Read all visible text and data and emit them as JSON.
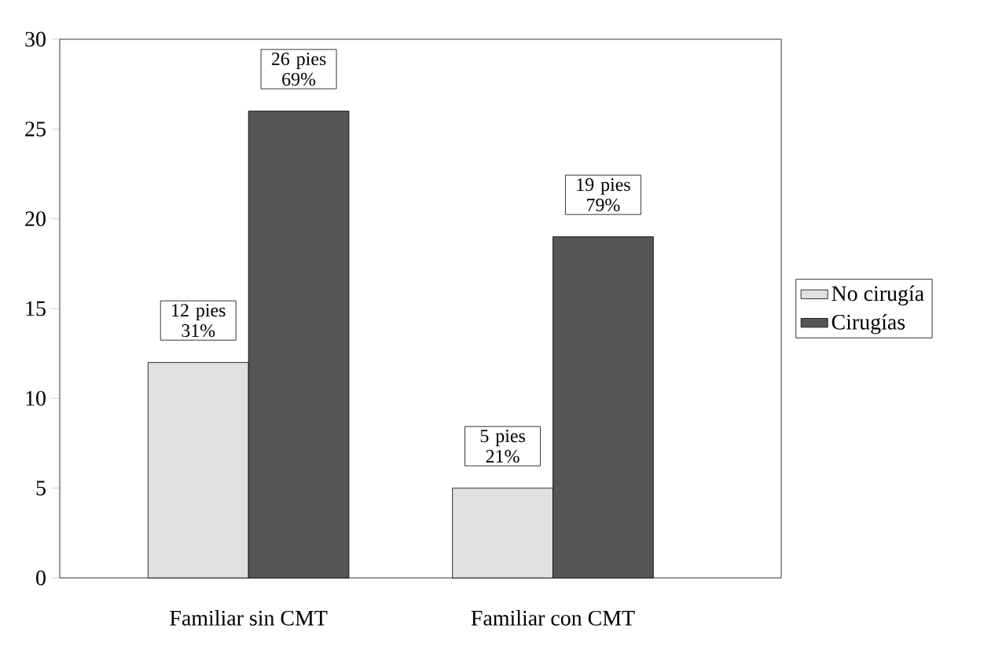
{
  "chart_data": {
    "type": "bar",
    "categories": [
      "Familiar sin CMT",
      "Familiar con CMT"
    ],
    "series": [
      {
        "name": "No cirugía",
        "color": "#e0e0e0",
        "values": [
          12,
          5
        ],
        "value_labels": [
          "12 pies 31%",
          "5 pies 21%"
        ]
      },
      {
        "name": "Cirugías",
        "color": "#555555",
        "values": [
          26,
          19
        ],
        "value_labels": [
          "26 pies 69%",
          "19 pies 79%"
        ]
      }
    ],
    "ylim": [
      0,
      30
    ],
    "yticks": [
      0,
      5,
      10,
      15,
      20,
      25,
      30
    ],
    "legend": "right",
    "grid": false
  }
}
